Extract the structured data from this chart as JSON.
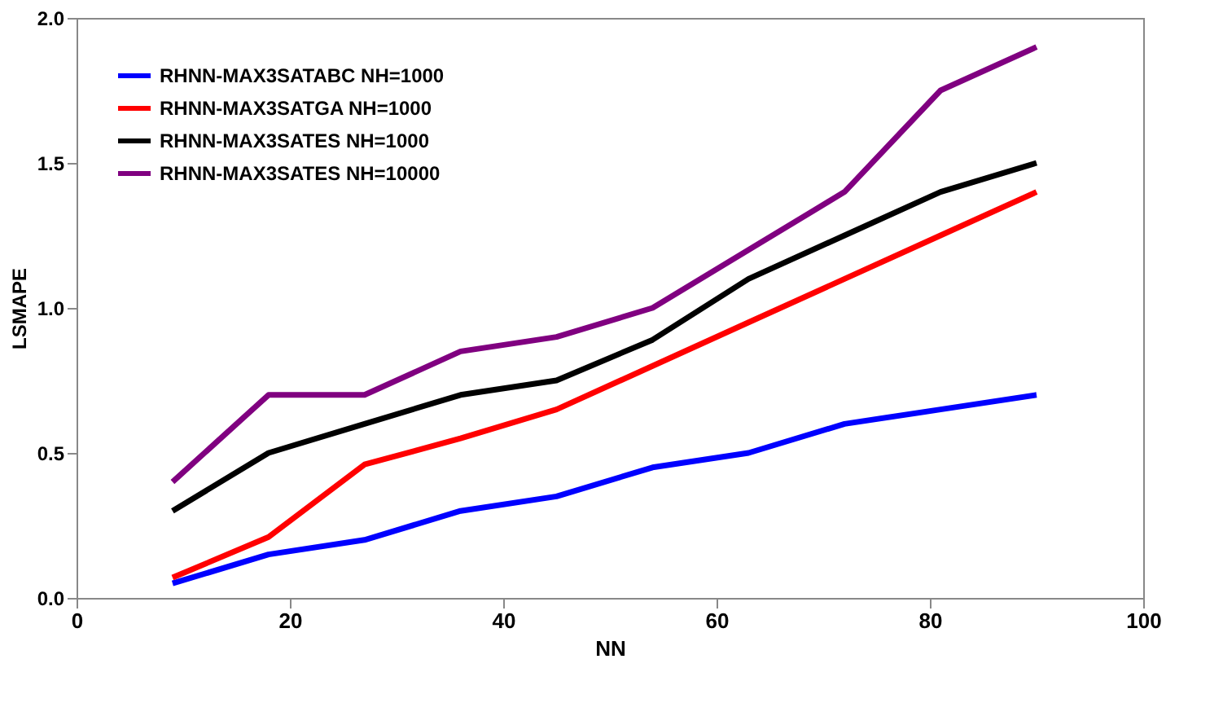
{
  "chart_data": {
    "type": "line",
    "xlabel": "NN",
    "ylabel": "LSMAPE",
    "x": [
      9,
      18,
      27,
      36,
      45,
      54,
      63,
      72,
      81,
      90
    ],
    "series": [
      {
        "name": "RHNN-MAX3SATABC NH=1000",
        "color": "#0000ff",
        "values": [
          0.05,
          0.15,
          0.2,
          0.3,
          0.35,
          0.45,
          0.5,
          0.6,
          0.65,
          0.7
        ]
      },
      {
        "name": "RHNN-MAX3SATGA NH=1000",
        "color": "#ff0000",
        "values": [
          0.07,
          0.21,
          0.46,
          0.55,
          0.65,
          0.8,
          0.95,
          1.1,
          1.25,
          1.4
        ]
      },
      {
        "name": "RHNN-MAX3SATES NH=1000",
        "color": "#000000",
        "values": [
          0.3,
          0.5,
          0.6,
          0.7,
          0.75,
          0.89,
          1.1,
          1.25,
          1.4,
          1.5
        ]
      },
      {
        "name": "RHNN-MAX3SATES NH=10000",
        "color": "#800080",
        "values": [
          0.4,
          0.7,
          0.7,
          0.85,
          0.9,
          1.0,
          1.2,
          1.4,
          1.75,
          1.9
        ]
      }
    ],
    "xlim": [
      0,
      100
    ],
    "xticks": [
      0,
      20,
      40,
      60,
      80,
      100
    ],
    "ylim": [
      0,
      2
    ],
    "yticks": [
      {
        "value": 0,
        "label": "0.0"
      },
      {
        "value": 0.5,
        "label": "0.5"
      },
      {
        "value": 1,
        "label": "1.0"
      },
      {
        "value": 1.5,
        "label": "1.5"
      },
      {
        "value": 2,
        "label": "2.0"
      }
    ],
    "grid": false,
    "legend": "top left",
    "marker": "none",
    "line_style": "solid"
  }
}
